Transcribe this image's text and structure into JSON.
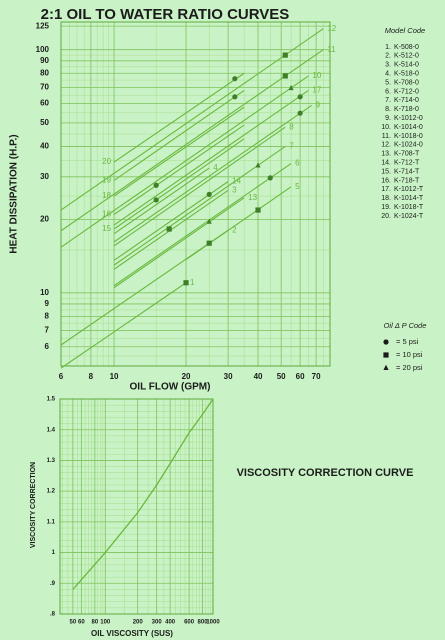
{
  "chart_data": [
    {
      "type": "line",
      "title": "2:1 OIL TO WATER RATIO CURVES",
      "x_label": "OIL FLOW (GPM)",
      "y_label": "HEAT DISSIPATION (H.P.)",
      "xscale": "log",
      "yscale": "log",
      "xlim": [
        6,
        80
      ],
      "ylim": [
        5,
        130
      ],
      "xticks": [
        6,
        8,
        10,
        20,
        30,
        40,
        50,
        60,
        70
      ],
      "yticks": [
        6,
        7,
        8,
        9,
        10,
        20,
        30,
        40,
        50,
        60,
        70,
        80,
        90,
        100,
        125
      ],
      "grid": true,
      "line_color": "#6ab83e",
      "marker_color": "#3f7f27",
      "series": [
        {
          "name": "1",
          "x": [
            6,
            20
          ],
          "values": [
            4.9,
            11
          ]
        },
        {
          "name": "2",
          "x": [
            6,
            30
          ],
          "values": [
            6.1,
            18.1
          ]
        },
        {
          "name": "3",
          "x": [
            10,
            30
          ],
          "values": [
            12.5,
            26.4
          ]
        },
        {
          "name": "4",
          "x": [
            10,
            25
          ],
          "values": [
            17.5,
            32.6
          ]
        },
        {
          "name": "5",
          "x": [
            20,
            55
          ],
          "values": [
            13.7,
            27.3
          ]
        },
        {
          "name": "6",
          "x": [
            10,
            55
          ],
          "values": [
            10.7,
            34
          ]
        },
        {
          "name": "7",
          "x": [
            10,
            52
          ],
          "values": [
            13,
            40
          ]
        },
        {
          "name": "8",
          "x": [
            10,
            52
          ],
          "values": [
            15.6,
            48
          ]
        },
        {
          "name": "9",
          "x": [
            10,
            67
          ],
          "values": [
            16.2,
            59
          ]
        },
        {
          "name": "10",
          "x": [
            6,
            65
          ],
          "values": [
            15.4,
            78
          ]
        },
        {
          "name": "11",
          "x": [
            6,
            75
          ],
          "values": [
            18,
            100
          ]
        },
        {
          "name": "12",
          "x": [
            6,
            75
          ],
          "values": [
            21.9,
            122
          ]
        },
        {
          "name": "13",
          "x": [
            10,
            35
          ],
          "values": [
            10.5,
            24.6
          ]
        },
        {
          "name": "14",
          "x": [
            10,
            30
          ],
          "values": [
            13.6,
            28.7
          ]
        },
        {
          "name": "15",
          "x": [
            10,
            35
          ],
          "values": [
            18.3,
            43
          ],
          "label_side": "start"
        },
        {
          "name": "16",
          "x": [
            10,
            35
          ],
          "values": [
            21,
            49
          ],
          "label_side": "start"
        },
        {
          "name": "17",
          "x": [
            10,
            65
          ],
          "values": [
            19,
            68
          ]
        },
        {
          "name": "18",
          "x": [
            10,
            35
          ],
          "values": [
            25,
            58
          ],
          "label_side": "start"
        },
        {
          "name": "19",
          "x": [
            10,
            35
          ],
          "values": [
            29,
            68
          ],
          "label_side": "start"
        },
        {
          "name": "20",
          "x": [
            10,
            35
          ],
          "values": [
            34.5,
            80
          ],
          "label_side": "start"
        }
      ],
      "model_code_title": "Model Code",
      "model_codes": [
        {
          "number": "1.",
          "code": "K-508-0"
        },
        {
          "number": "2.",
          "code": "K-512-0"
        },
        {
          "number": "3.",
          "code": "K-514-0"
        },
        {
          "number": "4.",
          "code": "K-518-0"
        },
        {
          "number": "5.",
          "code": "K-708-0"
        },
        {
          "number": "6.",
          "code": "K-712-0"
        },
        {
          "number": "7.",
          "code": "K-714-0"
        },
        {
          "number": "8.",
          "code": "K-718-0"
        },
        {
          "number": "9.",
          "code": "K-1012-0"
        },
        {
          "number": "10.",
          "code": "K-1014-0"
        },
        {
          "number": "11.",
          "code": "K-1018-0"
        },
        {
          "number": "12.",
          "code": "K-1024-0"
        },
        {
          "number": "13.",
          "code": "K-708-T"
        },
        {
          "number": "14.",
          "code": "K-712-T"
        },
        {
          "number": "15.",
          "code": "K-714-T"
        },
        {
          "number": "16.",
          "code": "K-718-T"
        },
        {
          "number": "17.",
          "code": "K-1012-T"
        },
        {
          "number": "18.",
          "code": "K-1014-T"
        },
        {
          "number": "19.",
          "code": "K-1018-T"
        },
        {
          "number": "20.",
          "code": "K-1024-T"
        }
      ],
      "pressure_code_title": "Oil Δ P Code",
      "pressure_codes": [
        {
          "shape": "circle",
          "label": "=  5 psi",
          "x": [
            15,
            15,
            32,
            32,
            45,
            60,
            60,
            25
          ],
          "y": [
            24.1,
            27.7,
            76,
            64,
            29.7,
            54.8,
            64,
            25.4
          ]
        },
        {
          "shape": "square",
          "label": "=  10 psi",
          "x": [
            20,
            25,
            17,
            40,
            52,
            52
          ],
          "y": [
            11,
            16,
            18.3,
            21.9,
            95,
            78
          ]
        },
        {
          "shape": "triangle",
          "label": "=  20 psi",
          "x": [
            55,
            25,
            40
          ],
          "y": [
            69.5,
            19.6,
            33.4
          ]
        }
      ]
    },
    {
      "type": "line",
      "title": "VISCOSITY CORRECTION CURVE",
      "x_label": "OIL VISCOSITY (SUS)",
      "y_label": "VISCOSITY CORRECTION",
      "xscale": "log",
      "yscale": "linear",
      "xlim": [
        38,
        1000
      ],
      "ylim": [
        0.8,
        1.5
      ],
      "xticks": [
        50,
        60,
        80,
        100,
        200,
        300,
        400,
        600,
        800,
        1000
      ],
      "yticks": [
        {
          "value": 0.8,
          "label": ".8"
        },
        {
          "value": 0.9,
          "label": ".9"
        },
        1,
        1.1,
        1.2,
        1.3,
        1.4,
        1.5
      ],
      "grid": true,
      "line_color": "#6ab83e",
      "x": [
        50,
        100,
        200,
        300,
        400,
        600,
        800,
        1000
      ],
      "values": [
        0.88,
        1.0,
        1.13,
        1.22,
        1.29,
        1.39,
        1.45,
        1.5
      ]
    }
  ]
}
